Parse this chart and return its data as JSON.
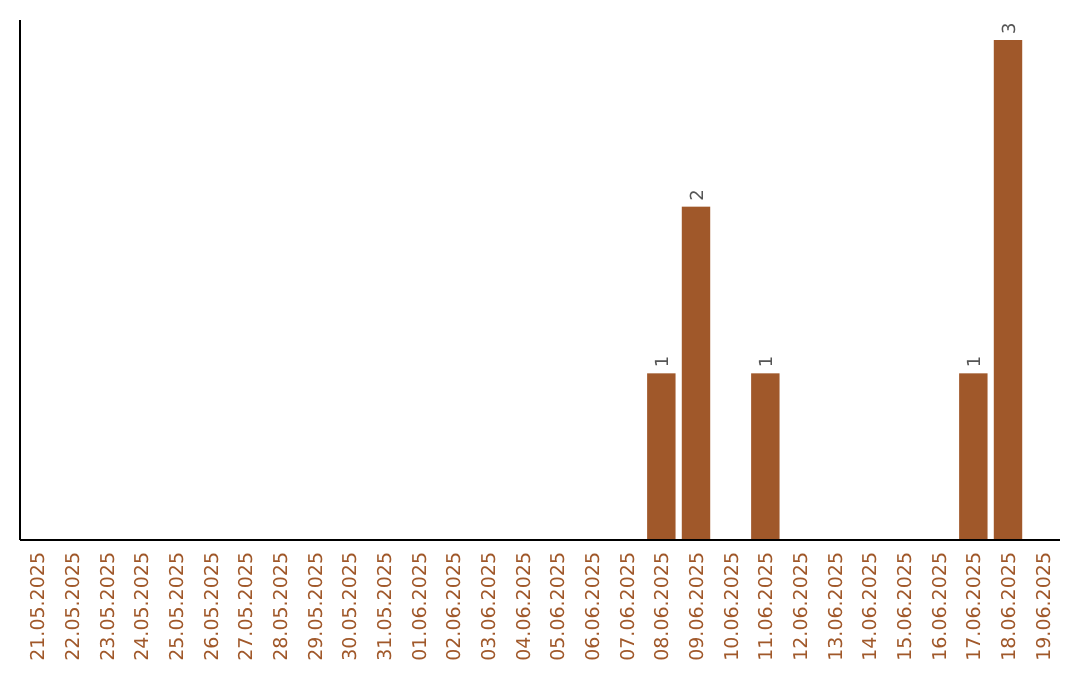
{
  "chart_data": {
    "type": "bar",
    "categories": [
      "21.05.2025",
      "22.05.2025",
      "23.05.2025",
      "24.05.2025",
      "25.05.2025",
      "26.05.2025",
      "27.05.2025",
      "28.05.2025",
      "29.05.2025",
      "30.05.2025",
      "31.05.2025",
      "01.06.2025",
      "02.06.2025",
      "03.06.2025",
      "04.06.2025",
      "05.06.2025",
      "06.06.2025",
      "07.06.2025",
      "08.06.2025",
      "09.06.2025",
      "10.06.2025",
      "11.06.2025",
      "12.06.2025",
      "13.06.2025",
      "14.06.2025",
      "15.06.2025",
      "16.06.2025",
      "17.06.2025",
      "18.06.2025",
      "19.06.2025"
    ],
    "values": [
      null,
      null,
      null,
      null,
      null,
      null,
      null,
      null,
      null,
      null,
      null,
      null,
      null,
      null,
      null,
      null,
      null,
      null,
      1,
      2,
      null,
      1,
      null,
      null,
      null,
      null,
      null,
      1,
      3,
      null
    ],
    "data_labels": true,
    "color": "#a0582a",
    "tick_labels": "x"
  }
}
